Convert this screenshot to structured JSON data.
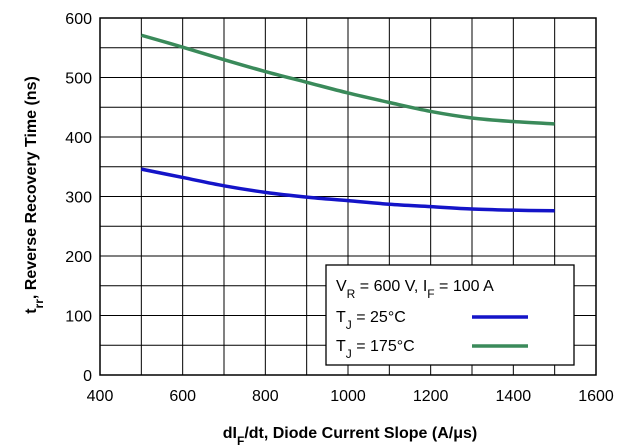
{
  "chart_data": {
    "type": "line",
    "xlabel": {
      "main": "dI",
      "sub": "F",
      "rest": "/dt, Diode Current Slope (A/",
      "mu": "μ",
      "tail": "s)"
    },
    "ylabel": {
      "main": "t",
      "sub": "rr",
      "rest": ", Reverse Recovery Time (ns)"
    },
    "xlim": [
      400,
      1600
    ],
    "ylim": [
      0,
      600
    ],
    "xticks": [
      400,
      600,
      800,
      1000,
      1200,
      1400,
      1600
    ],
    "yticks": [
      0,
      100,
      200,
      300,
      400,
      500,
      600
    ],
    "x_minor_step": 100,
    "y_minor_step": 50,
    "grid": true,
    "legend_position": "bottom-right",
    "legend_header": {
      "a": "V",
      "a_sub": "R",
      "b": " = 600 V, I",
      "b_sub": "F",
      "c": " = 100 A"
    },
    "series": [
      {
        "name": "T_J = 25°C",
        "label_main": "T",
        "label_sub": "J",
        "label_rest": " = 25°C",
        "color": "#1414c8",
        "x": [
          500,
          600,
          700,
          800,
          900,
          1000,
          1100,
          1200,
          1300,
          1400,
          1500
        ],
        "y": [
          346,
          332,
          318,
          307,
          299,
          293,
          287,
          283,
          279,
          277,
          276
        ]
      },
      {
        "name": "T_J = 175°C",
        "label_main": "T",
        "label_sub": "J",
        "label_rest": " = 175°C",
        "color": "#3a8a5a",
        "x": [
          500,
          600,
          700,
          800,
          900,
          1000,
          1100,
          1200,
          1300,
          1400,
          1500
        ],
        "y": [
          571,
          551,
          530,
          510,
          492,
          474,
          458,
          443,
          432,
          426,
          422
        ]
      }
    ]
  }
}
